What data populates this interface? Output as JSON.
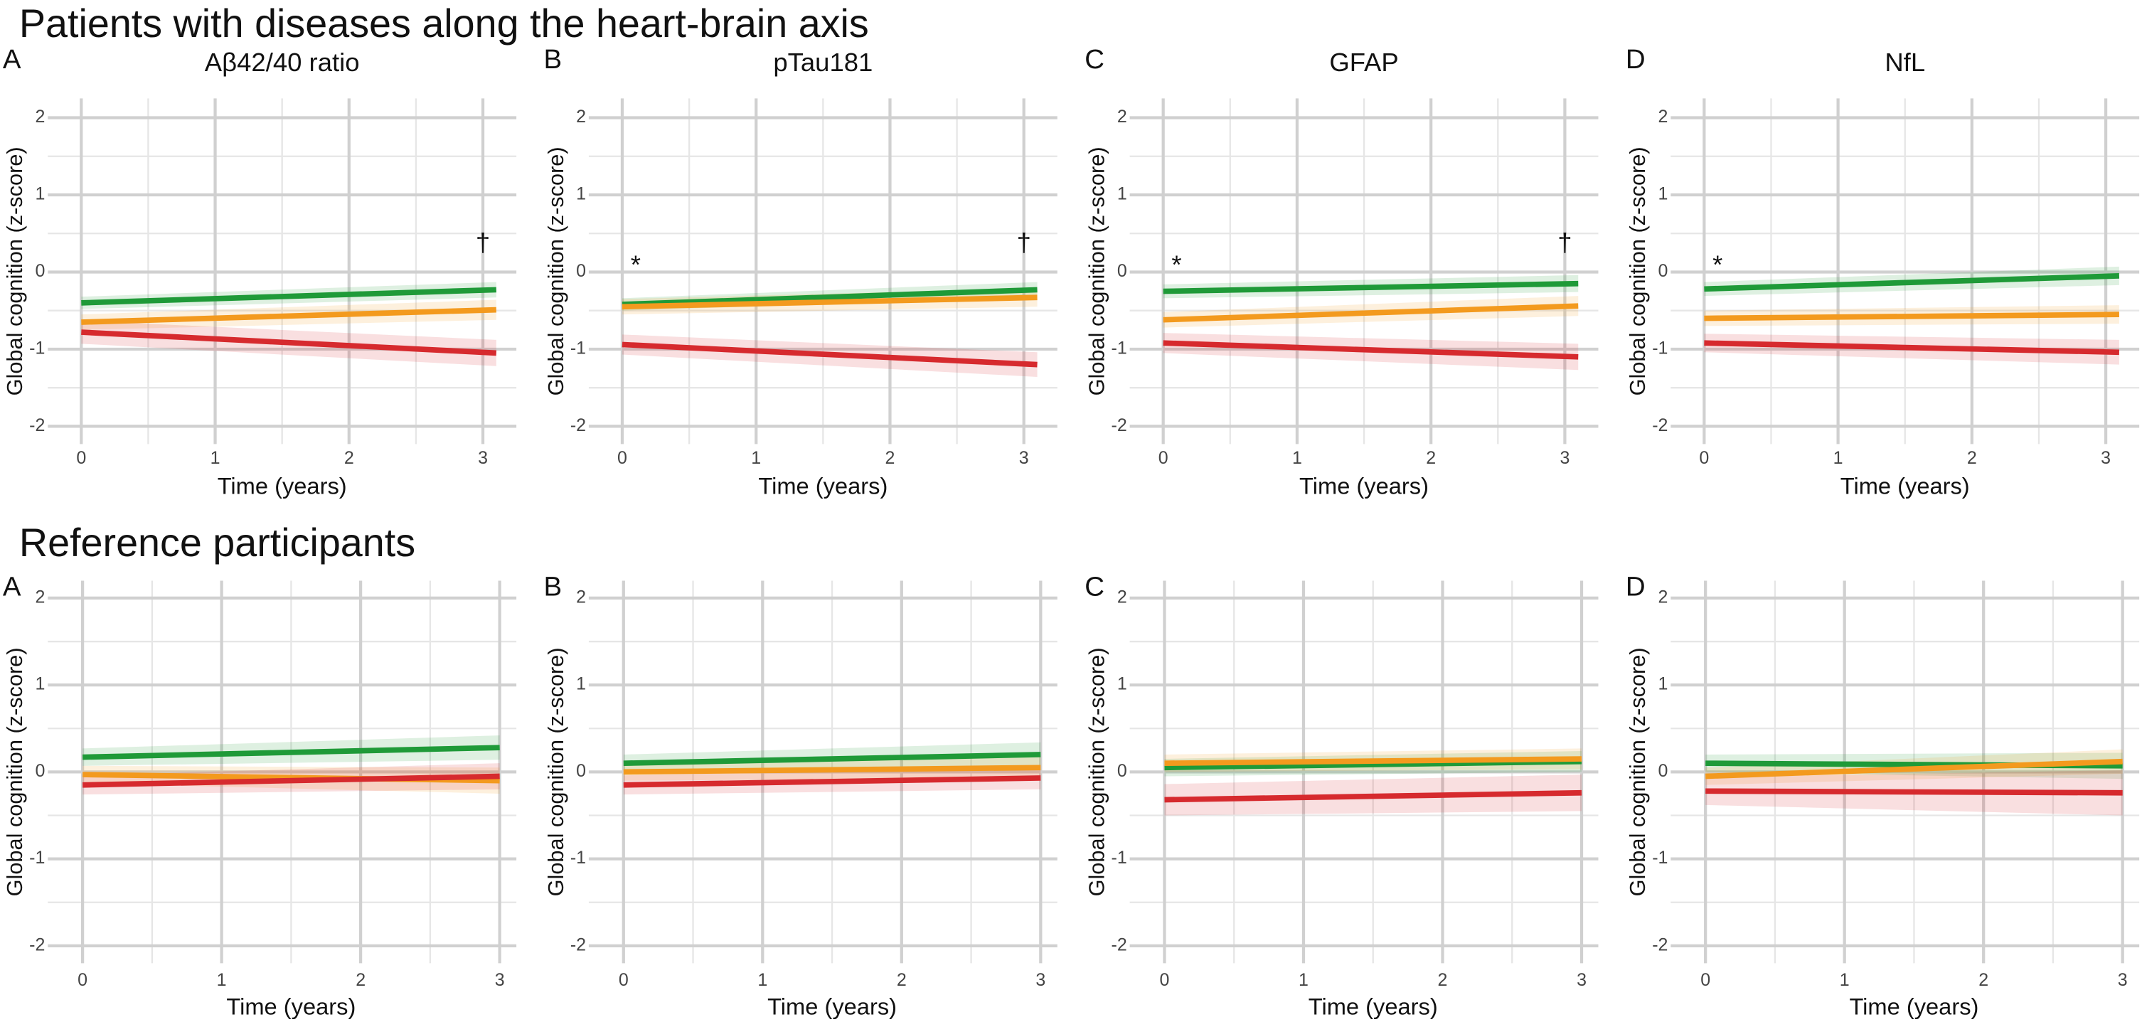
{
  "section_titles": [
    "Patients with diseases along the heart-brain axis",
    "Reference participants"
  ],
  "chart_data": [
    {
      "type": "line",
      "panel": "A",
      "title": "Aβ42/40 ratio",
      "xlabel": "Time (years)",
      "ylabel": "Global cognition (z-score)",
      "x": [
        0,
        3.1
      ],
      "xlim": [
        -0.25,
        3.25
      ],
      "ylim": [
        -2.23,
        2.25
      ],
      "xticks": [
        0,
        1,
        2,
        3
      ],
      "yticks": [
        -2,
        -1,
        0,
        1,
        2
      ],
      "xminor_ticks": [
        0.5,
        1.5,
        2.5
      ],
      "yminor_ticks": [
        -1.5,
        -0.5,
        0.5,
        1.5
      ],
      "grid": true,
      "series": [
        {
          "color": "#1f9a38",
          "values": [
            -0.4,
            -0.23
          ],
          "ci_lower": [
            -0.48,
            -0.33
          ],
          "ci_upper": [
            -0.32,
            -0.13
          ]
        },
        {
          "color": "#f39a1e",
          "values": [
            -0.65,
            -0.49
          ],
          "ci_lower": [
            -0.75,
            -0.62
          ],
          "ci_upper": [
            -0.55,
            -0.36
          ]
        },
        {
          "color": "#d62a2e",
          "values": [
            -0.78,
            -1.05
          ],
          "ci_lower": [
            -0.93,
            -1.22
          ],
          "ci_upper": [
            -0.63,
            -0.88
          ]
        }
      ],
      "annotations": [
        {
          "text": "†",
          "x": 3.0,
          "y": 0.27
        }
      ]
    },
    {
      "type": "line",
      "panel": "B",
      "title": "pTau181",
      "xlabel": "Time (years)",
      "ylabel": "Global cognition (z-score)",
      "x": [
        0,
        3.1
      ],
      "xlim": [
        -0.25,
        3.25
      ],
      "ylim": [
        -2.23,
        2.25
      ],
      "xticks": [
        0,
        1,
        2,
        3
      ],
      "yticks": [
        -2,
        -1,
        0,
        1,
        2
      ],
      "xminor_ticks": [
        0.5,
        1.5,
        2.5
      ],
      "yminor_ticks": [
        -1.5,
        -0.5,
        0.5,
        1.5
      ],
      "grid": true,
      "series": [
        {
          "color": "#1f9a38",
          "values": [
            -0.42,
            -0.23
          ],
          "ci_lower": [
            -0.5,
            -0.33
          ],
          "ci_upper": [
            -0.34,
            -0.13
          ]
        },
        {
          "color": "#f39a1e",
          "values": [
            -0.45,
            -0.33
          ],
          "ci_lower": [
            -0.55,
            -0.45
          ],
          "ci_upper": [
            -0.35,
            -0.21
          ]
        },
        {
          "color": "#d62a2e",
          "values": [
            -0.94,
            -1.2
          ],
          "ci_lower": [
            -1.07,
            -1.36
          ],
          "ci_upper": [
            -0.81,
            -1.04
          ]
        }
      ],
      "annotations": [
        {
          "text": "*",
          "x": 0.1,
          "y": -0.02
        },
        {
          "text": "†",
          "x": 3.0,
          "y": 0.27
        }
      ]
    },
    {
      "type": "line",
      "panel": "C",
      "title": "GFAP",
      "xlabel": "Time (years)",
      "ylabel": "Global cognition (z-score)",
      "x": [
        0,
        3.1
      ],
      "xlim": [
        -0.25,
        3.25
      ],
      "ylim": [
        -2.23,
        2.25
      ],
      "xticks": [
        0,
        1,
        2,
        3
      ],
      "yticks": [
        -2,
        -1,
        0,
        1,
        2
      ],
      "xminor_ticks": [
        0.5,
        1.5,
        2.5
      ],
      "yminor_ticks": [
        -1.5,
        -0.5,
        0.5,
        1.5
      ],
      "grid": true,
      "series": [
        {
          "color": "#1f9a38",
          "values": [
            -0.25,
            -0.15
          ],
          "ci_lower": [
            -0.34,
            -0.26
          ],
          "ci_upper": [
            -0.16,
            -0.04
          ]
        },
        {
          "color": "#f39a1e",
          "values": [
            -0.62,
            -0.44
          ],
          "ci_lower": [
            -0.72,
            -0.57
          ],
          "ci_upper": [
            -0.52,
            -0.31
          ]
        },
        {
          "color": "#d62a2e",
          "values": [
            -0.92,
            -1.1
          ],
          "ci_lower": [
            -1.05,
            -1.27
          ],
          "ci_upper": [
            -0.79,
            -0.93
          ]
        }
      ],
      "annotations": [
        {
          "text": "*",
          "x": 0.1,
          "y": -0.02
        },
        {
          "text": "†",
          "x": 3.0,
          "y": 0.27
        }
      ]
    },
    {
      "type": "line",
      "panel": "D",
      "title": "NfL",
      "xlabel": "Time (years)",
      "ylabel": "Global cognition (z-score)",
      "x": [
        0,
        3.1
      ],
      "xlim": [
        -0.25,
        3.25
      ],
      "ylim": [
        -2.23,
        2.25
      ],
      "xticks": [
        0,
        1,
        2,
        3
      ],
      "yticks": [
        -2,
        -1,
        0,
        1,
        2
      ],
      "xminor_ticks": [
        0.5,
        1.5,
        2.5
      ],
      "yminor_ticks": [
        -1.5,
        -0.5,
        0.5,
        1.5
      ],
      "grid": true,
      "series": [
        {
          "color": "#1f9a38",
          "values": [
            -0.22,
            -0.05
          ],
          "ci_lower": [
            -0.31,
            -0.17
          ],
          "ci_upper": [
            -0.13,
            0.07
          ]
        },
        {
          "color": "#f39a1e",
          "values": [
            -0.6,
            -0.55
          ],
          "ci_lower": [
            -0.7,
            -0.67
          ],
          "ci_upper": [
            -0.5,
            -0.43
          ]
        },
        {
          "color": "#d62a2e",
          "values": [
            -0.92,
            -1.04
          ],
          "ci_lower": [
            -1.04,
            -1.2
          ],
          "ci_upper": [
            -0.8,
            -0.88
          ]
        }
      ],
      "annotations": [
        {
          "text": "*",
          "x": 0.1,
          "y": -0.02
        }
      ]
    },
    {
      "type": "line",
      "panel": "A",
      "xlabel": "Time (years)",
      "ylabel": "Global cognition (z-score)",
      "x": [
        0,
        3
      ],
      "xlim": [
        -0.25,
        3.12
      ],
      "ylim": [
        -2.2,
        2.2
      ],
      "xticks": [
        0,
        1,
        2,
        3
      ],
      "yticks": [
        -2,
        -1,
        0,
        1,
        2
      ],
      "xminor_ticks": [
        0.5,
        1.5,
        2.5
      ],
      "yminor_ticks": [
        -1.5,
        -0.5,
        0.5,
        1.5
      ],
      "grid": true,
      "series": [
        {
          "color": "#1f9a38",
          "values": [
            0.17,
            0.28
          ],
          "ci_lower": [
            0.07,
            0.14
          ],
          "ci_upper": [
            0.27,
            0.42
          ]
        },
        {
          "color": "#f39a1e",
          "values": [
            -0.03,
            -0.1
          ],
          "ci_lower": [
            -0.13,
            -0.25
          ],
          "ci_upper": [
            0.07,
            0.05
          ]
        },
        {
          "color": "#d62a2e",
          "values": [
            -0.15,
            -0.05
          ],
          "ci_lower": [
            -0.26,
            -0.2
          ],
          "ci_upper": [
            -0.04,
            0.1
          ]
        }
      ]
    },
    {
      "type": "line",
      "panel": "B",
      "xlabel": "Time (years)",
      "ylabel": "Global cognition (z-score)",
      "x": [
        0,
        3
      ],
      "xlim": [
        -0.25,
        3.12
      ],
      "ylim": [
        -2.2,
        2.2
      ],
      "xticks": [
        0,
        1,
        2,
        3
      ],
      "yticks": [
        -2,
        -1,
        0,
        1,
        2
      ],
      "xminor_ticks": [
        0.5,
        1.5,
        2.5
      ],
      "yminor_ticks": [
        -1.5,
        -0.5,
        0.5,
        1.5
      ],
      "grid": true,
      "series": [
        {
          "color": "#1f9a38",
          "values": [
            0.1,
            0.2
          ],
          "ci_lower": [
            0.0,
            0.06
          ],
          "ci_upper": [
            0.2,
            0.34
          ]
        },
        {
          "color": "#f39a1e",
          "values": [
            0.0,
            0.05
          ],
          "ci_lower": [
            -0.1,
            -0.08
          ],
          "ci_upper": [
            0.1,
            0.18
          ]
        },
        {
          "color": "#d62a2e",
          "values": [
            -0.15,
            -0.07
          ],
          "ci_lower": [
            -0.26,
            -0.2
          ],
          "ci_upper": [
            -0.04,
            0.06
          ]
        }
      ]
    },
    {
      "type": "line",
      "panel": "C",
      "xlabel": "Time (years)",
      "ylabel": "Global cognition (z-score)",
      "x": [
        0,
        3
      ],
      "xlim": [
        -0.25,
        3.12
      ],
      "ylim": [
        -2.2,
        2.2
      ],
      "xticks": [
        0,
        1,
        2,
        3
      ],
      "yticks": [
        -2,
        -1,
        0,
        1,
        2
      ],
      "xminor_ticks": [
        0.5,
        1.5,
        2.5
      ],
      "yminor_ticks": [
        -1.5,
        -0.5,
        0.5,
        1.5
      ],
      "grid": true,
      "series": [
        {
          "color": "#1f9a38",
          "values": [
            0.05,
            0.12
          ],
          "ci_lower": [
            -0.05,
            0.0
          ],
          "ci_upper": [
            0.15,
            0.24
          ]
        },
        {
          "color": "#f39a1e",
          "values": [
            0.1,
            0.15
          ],
          "ci_lower": [
            0.0,
            0.03
          ],
          "ci_upper": [
            0.2,
            0.27
          ]
        },
        {
          "color": "#d62a2e",
          "values": [
            -0.32,
            -0.24
          ],
          "ci_lower": [
            -0.5,
            -0.45
          ],
          "ci_upper": [
            -0.14,
            -0.03
          ]
        }
      ]
    },
    {
      "type": "line",
      "panel": "D",
      "xlabel": "Time (years)",
      "ylabel": "Global cognition (z-score)",
      "x": [
        0,
        3
      ],
      "xlim": [
        -0.25,
        3.12
      ],
      "ylim": [
        -2.2,
        2.2
      ],
      "xticks": [
        0,
        1,
        2,
        3
      ],
      "yticks": [
        -2,
        -1,
        0,
        1,
        2
      ],
      "xminor_ticks": [
        0.5,
        1.5,
        2.5
      ],
      "yminor_ticks": [
        -1.5,
        -0.5,
        0.5,
        1.5
      ],
      "grid": true,
      "series": [
        {
          "color": "#1f9a38",
          "values": [
            0.1,
            0.07
          ],
          "ci_lower": [
            0.0,
            -0.08
          ],
          "ci_upper": [
            0.2,
            0.22
          ]
        },
        {
          "color": "#f39a1e",
          "values": [
            -0.05,
            0.12
          ],
          "ci_lower": [
            -0.15,
            -0.02
          ],
          "ci_upper": [
            0.05,
            0.26
          ]
        },
        {
          "color": "#d62a2e",
          "values": [
            -0.22,
            -0.24
          ],
          "ci_lower": [
            -0.38,
            -0.5
          ],
          "ci_upper": [
            -0.06,
            0.02
          ]
        }
      ]
    }
  ]
}
